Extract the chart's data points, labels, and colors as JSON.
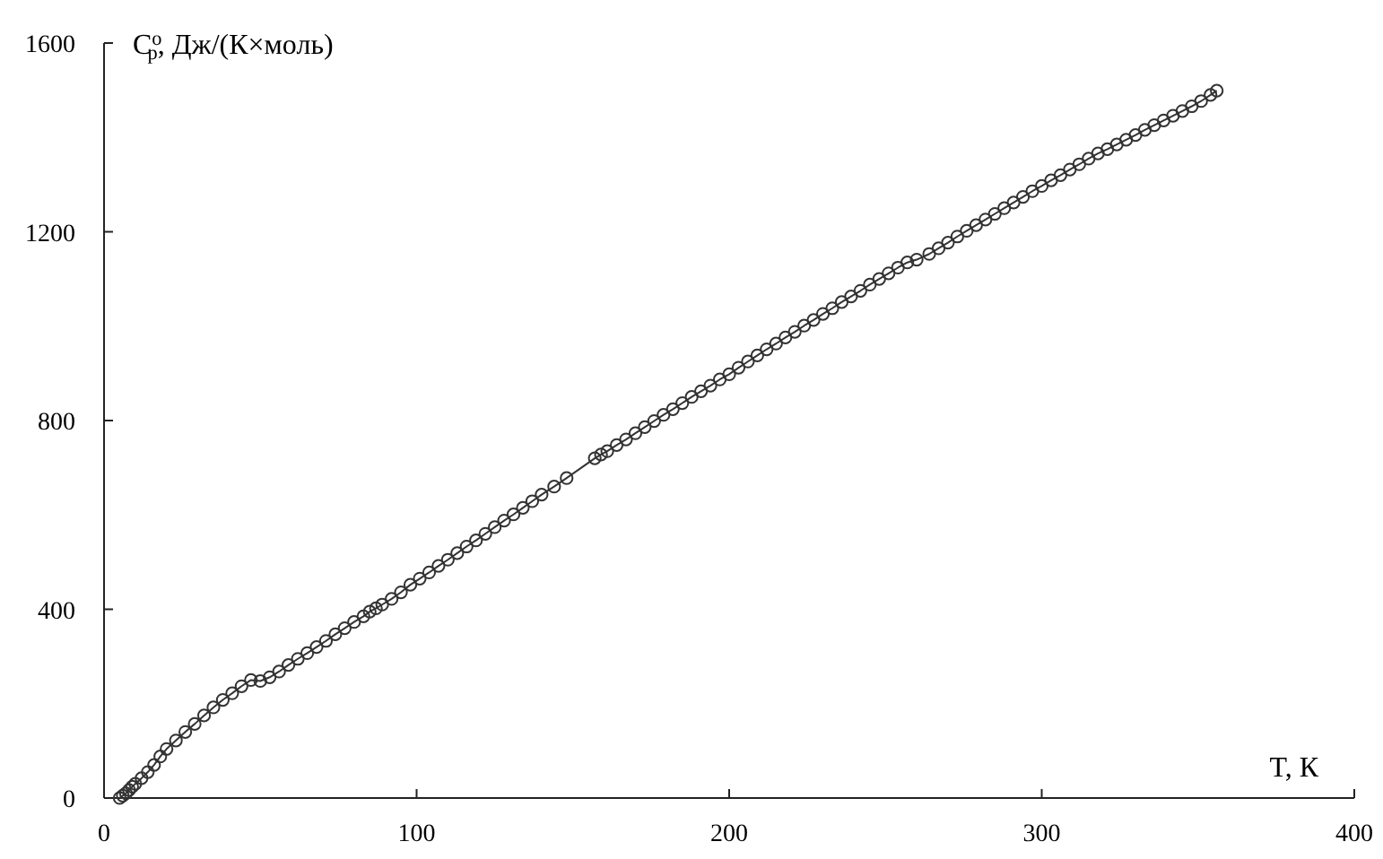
{
  "chart_data": {
    "type": "line",
    "marker": "circle",
    "line_style": "solid",
    "grid": false,
    "xlabel": "T, К",
    "ylabel": "C$^{o}$$_{p}$, Дж/(К×моль)",
    "xlim": [
      0,
      400
    ],
    "xticks": [
      0,
      100,
      200,
      300,
      400
    ],
    "ylim": [
      0,
      1600
    ],
    "yticks": [
      0,
      400,
      800,
      1200,
      1600
    ],
    "series": [
      {
        "color": "#333333",
        "x": [
          5,
          6,
          7,
          8,
          9,
          10,
          12,
          14,
          16,
          18,
          20,
          23,
          26,
          29,
          32,
          35,
          38,
          41,
          44,
          47,
          50,
          53,
          56,
          59,
          62,
          65,
          68,
          71,
          74,
          77,
          80,
          83,
          85,
          87,
          89,
          92,
          95,
          98,
          101,
          104,
          107,
          110,
          113,
          116,
          119,
          122,
          125,
          128,
          131,
          134,
          137,
          140,
          144,
          148,
          157,
          159,
          161,
          164,
          167,
          170,
          173,
          176,
          179,
          182,
          185,
          188,
          191,
          194,
          197,
          200,
          203,
          206,
          209,
          212,
          215,
          218,
          221,
          224,
          227,
          230,
          233,
          236,
          239,
          242,
          245,
          248,
          251,
          254,
          257,
          260,
          264,
          267,
          270,
          273,
          276,
          279,
          282,
          285,
          288,
          291,
          294,
          297,
          300,
          303,
          306,
          309,
          312,
          315,
          318,
          321,
          324,
          327,
          330,
          333,
          336,
          339,
          342,
          345,
          348,
          351,
          354,
          356
        ],
        "values": [
          0,
          5,
          10,
          17,
          24,
          30,
          42,
          55,
          70,
          88,
          104,
          122,
          140,
          157,
          175,
          192,
          208,
          222,
          237,
          250,
          248,
          256,
          268,
          282,
          295,
          307,
          320,
          333,
          347,
          360,
          373,
          385,
          395,
          402,
          410,
          422,
          436,
          452,
          465,
          478,
          492,
          505,
          519,
          533,
          546,
          560,
          574,
          588,
          601,
          615,
          629,
          643,
          660,
          678,
          720,
          728,
          735,
          748,
          760,
          773,
          786,
          799,
          812,
          824,
          837,
          850,
          862,
          874,
          887,
          898,
          912,
          925,
          938,
          951,
          963,
          976,
          988,
          1001,
          1013,
          1026,
          1038,
          1051,
          1063,
          1075,
          1088,
          1100,
          1112,
          1124,
          1135,
          1141,
          1153,
          1165,
          1177,
          1190,
          1202,
          1214,
          1226,
          1238,
          1250,
          1262,
          1274,
          1286,
          1297,
          1309,
          1320,
          1332,
          1343,
          1355,
          1366,
          1375,
          1385,
          1395,
          1405,
          1416,
          1426,
          1436,
          1446,
          1456,
          1466,
          1477,
          1490,
          1499
        ]
      }
    ]
  }
}
